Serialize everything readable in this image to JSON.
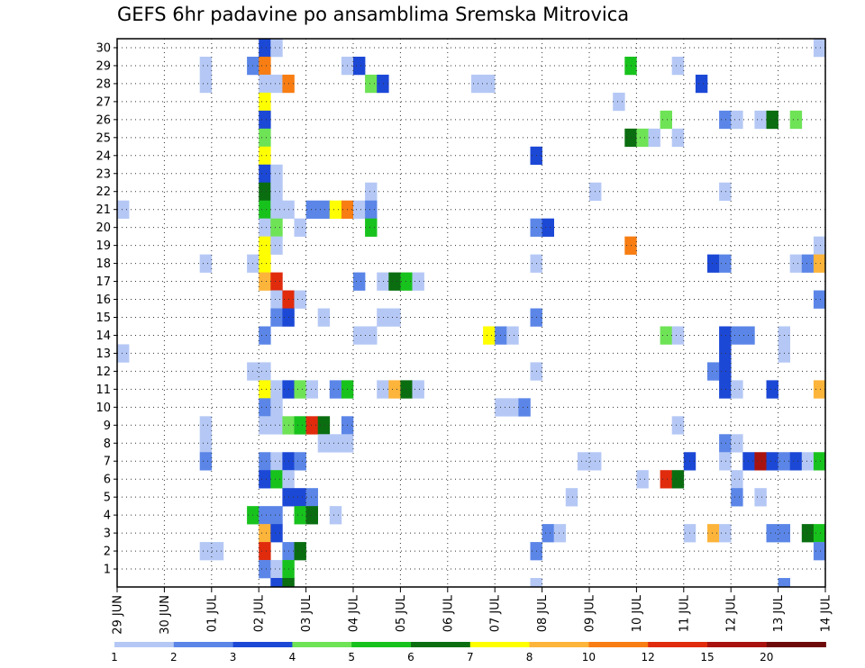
{
  "chart_data": {
    "type": "heatmap",
    "title": "GEFS 6hr padavine po ansamblima Sremska Mitrovica",
    "xlabel": "",
    "ylabel": "",
    "x_tick_labels": [
      "29 JUN",
      "30 JUN",
      "01 JUL",
      "02 JUL",
      "03 JUL",
      "04 JUL",
      "05 JUL",
      "06 JUL",
      "07 JUL",
      "08 JUL",
      "09 JUL",
      "10 JUL",
      "11 JUL",
      "12 JUL",
      "13 JUL",
      "14 JUL"
    ],
    "y_tick_labels": [
      "1",
      "2",
      "3",
      "4",
      "5",
      "6",
      "7",
      "8",
      "9",
      "10",
      "11",
      "12",
      "13",
      "14",
      "15",
      "16",
      "17",
      "18",
      "19",
      "20",
      "21",
      "22",
      "23",
      "24",
      "25",
      "26",
      "27",
      "28",
      "29",
      "30"
    ],
    "x_range_steps": [
      0,
      60
    ],
    "y_range": [
      0,
      30
    ],
    "grid": true,
    "colorbar": {
      "labels": [
        "1",
        "2",
        "3",
        "4",
        "5",
        "6",
        "7",
        "8",
        "10",
        "12",
        "15",
        "20"
      ],
      "colors": [
        "#b5c8f5",
        "#5b86e8",
        "#1c48d6",
        "#6ee356",
        "#18c21d",
        "#0a6e10",
        "#ffff00",
        "#fdb43a",
        "#f87d12",
        "#e02b0d",
        "#a8130f",
        "#6e0a0a"
      ],
      "placement": "bottom"
    },
    "cells": [
      [
        12,
        30,
        3
      ],
      [
        13,
        30,
        1
      ],
      [
        59,
        30,
        1
      ],
      [
        7,
        29,
        1
      ],
      [
        11,
        29,
        2
      ],
      [
        12,
        29,
        9
      ],
      [
        19,
        29,
        1
      ],
      [
        20,
        29,
        3
      ],
      [
        43,
        29,
        5
      ],
      [
        47,
        29,
        1
      ],
      [
        7,
        28,
        1
      ],
      [
        12,
        28,
        1
      ],
      [
        13,
        28,
        1
      ],
      [
        14,
        28,
        9
      ],
      [
        21,
        28,
        4
      ],
      [
        22,
        28,
        3
      ],
      [
        30,
        28,
        1
      ],
      [
        31,
        28,
        1
      ],
      [
        49,
        28,
        3
      ],
      [
        12,
        27,
        7
      ],
      [
        42,
        27,
        1
      ],
      [
        12,
        26,
        3
      ],
      [
        46,
        26,
        4
      ],
      [
        51,
        26,
        2
      ],
      [
        52,
        26,
        1
      ],
      [
        54,
        26,
        1
      ],
      [
        55,
        26,
        6
      ],
      [
        57,
        26,
        4
      ],
      [
        12,
        25,
        4
      ],
      [
        43,
        25,
        6
      ],
      [
        44,
        25,
        4
      ],
      [
        45,
        25,
        1
      ],
      [
        47,
        25,
        1
      ],
      [
        12,
        24,
        7
      ],
      [
        35,
        24,
        3
      ],
      [
        12,
        23,
        3
      ],
      [
        13,
        23,
        1
      ],
      [
        12,
        22,
        6
      ],
      [
        13,
        22,
        1
      ],
      [
        21,
        22,
        1
      ],
      [
        40,
        22,
        1
      ],
      [
        51,
        22,
        1
      ],
      [
        0,
        21,
        1
      ],
      [
        12,
        21,
        5
      ],
      [
        13,
        21,
        1
      ],
      [
        14,
        21,
        1
      ],
      [
        16,
        21,
        2
      ],
      [
        17,
        21,
        2
      ],
      [
        18,
        21,
        7
      ],
      [
        19,
        21,
        9
      ],
      [
        20,
        21,
        1
      ],
      [
        21,
        21,
        2
      ],
      [
        12,
        20,
        1
      ],
      [
        13,
        20,
        4
      ],
      [
        15,
        20,
        1
      ],
      [
        21,
        20,
        5
      ],
      [
        35,
        20,
        2
      ],
      [
        36,
        20,
        3
      ],
      [
        12,
        19,
        7
      ],
      [
        13,
        19,
        1
      ],
      [
        43,
        19,
        9
      ],
      [
        59,
        19,
        1
      ],
      [
        7,
        18,
        1
      ],
      [
        11,
        18,
        1
      ],
      [
        12,
        18,
        7
      ],
      [
        35,
        18,
        1
      ],
      [
        50,
        18,
        3
      ],
      [
        51,
        18,
        2
      ],
      [
        57,
        18,
        1
      ],
      [
        58,
        18,
        2
      ],
      [
        59,
        18,
        8
      ],
      [
        12,
        17,
        8
      ],
      [
        13,
        17,
        10
      ],
      [
        20,
        17,
        2
      ],
      [
        22,
        17,
        1
      ],
      [
        23,
        17,
        6
      ],
      [
        24,
        17,
        5
      ],
      [
        25,
        17,
        1
      ],
      [
        13,
        16,
        1
      ],
      [
        14,
        16,
        10
      ],
      [
        15,
        16,
        1
      ],
      [
        59,
        16,
        2
      ],
      [
        13,
        15,
        2
      ],
      [
        14,
        15,
        3
      ],
      [
        17,
        15,
        1
      ],
      [
        22,
        15,
        1
      ],
      [
        23,
        15,
        1
      ],
      [
        35,
        15,
        2
      ],
      [
        12,
        14,
        2
      ],
      [
        20,
        14,
        1
      ],
      [
        21,
        14,
        1
      ],
      [
        31,
        14,
        7
      ],
      [
        32,
        14,
        2
      ],
      [
        33,
        14,
        1
      ],
      [
        46,
        14,
        4
      ],
      [
        47,
        14,
        1
      ],
      [
        51,
        14,
        3
      ],
      [
        52,
        14,
        2
      ],
      [
        53,
        14,
        2
      ],
      [
        56,
        14,
        1
      ],
      [
        0,
        13,
        1
      ],
      [
        51,
        13,
        3
      ],
      [
        56,
        13,
        1
      ],
      [
        11,
        12,
        1
      ],
      [
        12,
        12,
        1
      ],
      [
        35,
        12,
        1
      ],
      [
        50,
        12,
        2
      ],
      [
        51,
        12,
        3
      ],
      [
        12,
        11,
        7
      ],
      [
        13,
        11,
        1
      ],
      [
        14,
        11,
        3
      ],
      [
        15,
        11,
        4
      ],
      [
        16,
        11,
        1
      ],
      [
        18,
        11,
        2
      ],
      [
        19,
        11,
        5
      ],
      [
        22,
        11,
        1
      ],
      [
        23,
        11,
        8
      ],
      [
        24,
        11,
        6
      ],
      [
        25,
        11,
        1
      ],
      [
        51,
        11,
        3
      ],
      [
        52,
        11,
        1
      ],
      [
        55,
        11,
        3
      ],
      [
        59,
        11,
        8
      ],
      [
        12,
        10,
        2
      ],
      [
        13,
        10,
        1
      ],
      [
        32,
        10,
        1
      ],
      [
        33,
        10,
        1
      ],
      [
        34,
        10,
        2
      ],
      [
        7,
        9,
        1
      ],
      [
        12,
        9,
        1
      ],
      [
        13,
        9,
        1
      ],
      [
        14,
        9,
        4
      ],
      [
        15,
        9,
        5
      ],
      [
        16,
        9,
        10
      ],
      [
        17,
        9,
        6
      ],
      [
        19,
        9,
        2
      ],
      [
        47,
        9,
        1
      ],
      [
        7,
        8,
        1
      ],
      [
        17,
        8,
        1
      ],
      [
        18,
        8,
        1
      ],
      [
        19,
        8,
        1
      ],
      [
        51,
        8,
        2
      ],
      [
        52,
        8,
        1
      ],
      [
        7,
        7,
        2
      ],
      [
        12,
        7,
        2
      ],
      [
        13,
        7,
        1
      ],
      [
        14,
        7,
        3
      ],
      [
        15,
        7,
        2
      ],
      [
        39,
        7,
        1
      ],
      [
        40,
        7,
        1
      ],
      [
        48,
        7,
        3
      ],
      [
        51,
        7,
        1
      ],
      [
        53,
        7,
        3
      ],
      [
        54,
        7,
        11
      ],
      [
        55,
        7,
        3
      ],
      [
        56,
        7,
        2
      ],
      [
        57,
        7,
        3
      ],
      [
        58,
        7,
        1
      ],
      [
        59,
        7,
        5
      ],
      [
        12,
        6,
        3
      ],
      [
        13,
        6,
        5
      ],
      [
        14,
        6,
        1
      ],
      [
        44,
        6,
        1
      ],
      [
        46,
        6,
        10
      ],
      [
        47,
        6,
        6
      ],
      [
        52,
        6,
        1
      ],
      [
        14,
        5,
        3
      ],
      [
        15,
        5,
        3
      ],
      [
        16,
        5,
        2
      ],
      [
        38,
        5,
        1
      ],
      [
        52,
        5,
        2
      ],
      [
        54,
        5,
        1
      ],
      [
        11,
        4,
        5
      ],
      [
        12,
        4,
        2
      ],
      [
        13,
        4,
        2
      ],
      [
        15,
        4,
        5
      ],
      [
        16,
        4,
        6
      ],
      [
        18,
        4,
        1
      ],
      [
        12,
        3,
        8
      ],
      [
        13,
        3,
        3
      ],
      [
        36,
        3,
        2
      ],
      [
        37,
        3,
        1
      ],
      [
        48,
        3,
        1
      ],
      [
        50,
        3,
        8
      ],
      [
        51,
        3,
        1
      ],
      [
        55,
        3,
        2
      ],
      [
        56,
        3,
        2
      ],
      [
        58,
        3,
        6
      ],
      [
        59,
        3,
        5
      ],
      [
        7,
        2,
        1
      ],
      [
        8,
        2,
        1
      ],
      [
        12,
        2,
        10
      ],
      [
        14,
        2,
        2
      ],
      [
        15,
        2,
        6
      ],
      [
        35,
        2,
        2
      ],
      [
        59,
        2,
        2
      ],
      [
        12,
        1,
        2
      ],
      [
        13,
        1,
        1
      ],
      [
        14,
        1,
        5
      ],
      [
        13,
        0,
        3
      ],
      [
        14,
        0,
        6
      ],
      [
        35,
        0,
        1
      ],
      [
        56,
        0,
        2
      ]
    ]
  }
}
